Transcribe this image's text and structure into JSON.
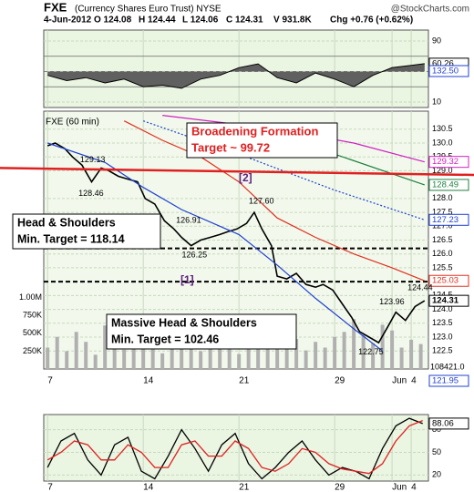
{
  "header": {
    "title": "FXE",
    "subtitle": "(Currency Shares Euro Trust) NYSE",
    "source": "@StockCharts.com",
    "quote": [
      "4-Jun-2012",
      "O 124.08",
      "H 124.44",
      "L 124.06",
      "C 124.31",
      "V 931.8K",
      "Chg +0.76 (+0.62%)"
    ]
  },
  "chart_data": [
    {
      "type": "line",
      "xlim": [
        -0.2,
        19.9
      ],
      "ylim": [
        2.8,
        104.3
      ],
      "yticks": [
        10,
        90
      ],
      "levels": [
        30,
        50,
        70
      ],
      "fill_level": 50,
      "grid": true,
      "extra_label": "132.50",
      "x": [
        0,
        1,
        2,
        3,
        4,
        5,
        6,
        7,
        8,
        9,
        10,
        11,
        12,
        13,
        14,
        15,
        16,
        17,
        18,
        19,
        19.7
      ],
      "series": [
        {
          "color": "#000000",
          "fill": "#606060",
          "tag": true,
          "values": [
            45,
            38,
            42,
            35,
            40,
            30,
            32,
            28,
            40,
            45,
            55,
            60,
            42,
            35,
            48,
            40,
            30,
            45,
            55,
            58,
            60.26
          ]
        }
      ]
    },
    {
      "type": "line",
      "label": "FXE (60 min)",
      "xlim": [
        -0.2,
        19.9
      ],
      "ylim": [
        121.85,
        131.15
      ],
      "yticks": [
        {
          "value": 130.5,
          "label": "130.5"
        },
        {
          "value": 130,
          "label": "130.0"
        },
        129.5,
        {
          "value": 129,
          "label": "129.0"
        },
        {
          "value": 128,
          "label": "128.0"
        },
        127.5,
        {
          "value": 127,
          "label": "127.0"
        },
        126.5,
        {
          "value": 126,
          "label": "126.0"
        },
        125.5,
        124.5,
        {
          "value": 124,
          "label": "124.0"
        },
        123.5,
        {
          "value": 123,
          "label": "123.0"
        },
        122.5
      ],
      "xticks": [
        {
          "value": 0,
          "label": "7"
        },
        {
          "value": 5,
          "label": "14"
        },
        {
          "value": 10,
          "label": "21"
        },
        {
          "value": 15,
          "label": "29"
        },
        {
          "value": 18,
          "label": "Jun"
        },
        {
          "value": 19,
          "label": "4"
        }
      ],
      "grid": true,
      "extra_label": "121.95",
      "hlines": [
        126.2,
        125.0
      ],
      "trendline": {
        "color": "#e02020",
        "x": [
          -2.5,
          22.3
        ],
        "values": [
          129.1,
          128.85
        ]
      },
      "series": [
        {
          "color": "#000000",
          "width": 1.6,
          "tag": true,
          "x": [
            0,
            0.4,
            0.9,
            1.3,
            1.8,
            2.3,
            2.8,
            3.2,
            3.7,
            4.2,
            4.7,
            5.1,
            5.6,
            6.1,
            6.6,
            7.0,
            7.5,
            8.0,
            8.5,
            9.0,
            9.4,
            9.9,
            10.4,
            10.8,
            11.2,
            11.7,
            12.0,
            12.5,
            13.0,
            13.5,
            14.0,
            14.4,
            14.9,
            15.4,
            15.9,
            16.3,
            16.8,
            17.3,
            17.8,
            18.2,
            18.7,
            19.2,
            19.7
          ],
          "values": [
            129.9,
            130.0,
            129.8,
            129.5,
            129.2,
            128.6,
            129.1,
            129.0,
            128.8,
            128.7,
            128.6,
            128.0,
            127.8,
            127.2,
            126.9,
            126.6,
            126.3,
            126.5,
            126.6,
            126.7,
            126.8,
            126.9,
            127.1,
            127.5,
            126.9,
            126.3,
            125.2,
            125.1,
            125.3,
            124.9,
            124.8,
            124.9,
            124.7,
            124.2,
            123.7,
            123.2,
            123.0,
            122.8,
            123.4,
            123.9,
            123.6,
            124.1,
            124.31
          ]
        },
        {
          "color": "#e03020",
          "width": 1.2,
          "tag": true,
          "x": [
            4,
            6,
            8,
            10,
            12,
            14,
            16,
            18,
            19.7
          ],
          "values": [
            130.8,
            130.1,
            129.5,
            128.6,
            127.3,
            126.6,
            126.0,
            125.5,
            125.03
          ]
        },
        {
          "color": "#2040d0",
          "width": 1.2,
          "x": [
            0,
            3,
            5,
            7,
            9,
            10,
            12,
            14,
            16,
            17.5
          ],
          "values": [
            130.0,
            129.3,
            128.4,
            127.6,
            127.0,
            126.7,
            125.6,
            124.4,
            123.3,
            122.5
          ]
        },
        {
          "color": "#2040d0",
          "width": 1.2,
          "dash": true,
          "tag": true,
          "x": [
            5,
            10,
            15,
            19.7
          ],
          "values": [
            130.8,
            129.6,
            128.3,
            127.23
          ]
        },
        {
          "color": "#208040",
          "width": 1.2,
          "tag": true,
          "x": [
            11,
            15,
            19.7
          ],
          "values": [
            130.6,
            129.6,
            128.49
          ]
        },
        {
          "color": "#d020c0",
          "width": 1.2,
          "tag": true,
          "x": [
            6,
            12,
            16,
            19.7
          ],
          "values": [
            131.0,
            130.5,
            130.0,
            129.32
          ]
        }
      ],
      "volume": {
        "color": "#b0b0b0",
        "ylim": [
          0,
          1200000
        ],
        "yticks": [
          {
            "value": 1000000,
            "label": "1.00M"
          },
          {
            "value": 750000,
            "label": "750K"
          },
          {
            "value": 500000,
            "label": "500K"
          },
          {
            "value": 250000,
            "label": "250K"
          }
        ],
        "extra_label": "108421.0",
        "x": [
          0,
          0.5,
          1,
          1.5,
          2,
          2.5,
          3,
          3.5,
          4,
          4.5,
          5,
          5.5,
          6,
          6.5,
          7,
          7.5,
          8,
          8.5,
          9,
          9.5,
          10,
          10.5,
          11,
          11.5,
          12,
          12.5,
          13,
          13.5,
          14,
          14.5,
          15,
          15.5,
          16,
          16.5,
          17,
          17.5,
          18,
          18.5,
          19,
          19.5
        ],
        "values": [
          300000,
          450000,
          250000,
          520000,
          380000,
          200000,
          610000,
          330000,
          270000,
          420000,
          500000,
          350000,
          220000,
          380000,
          460000,
          300000,
          250000,
          480000,
          550000,
          320000,
          210000,
          390000,
          470000,
          280000,
          340000,
          600000,
          420000,
          260000,
          380000,
          300000,
          450000,
          520000,
          700000,
          480000,
          360000,
          620000,
          540000,
          300000,
          410000,
          350000
        ]
      },
      "notes": [
        {
          "x": 1.7,
          "value": 129.13
        },
        {
          "x": 1.9,
          "value": 128.46
        },
        {
          "x": 7.0,
          "value": 126.91
        },
        {
          "x": 7.4,
          "value": 126.25
        },
        {
          "x": 10.8,
          "value": 127.6,
          "label": "127.60"
        },
        {
          "x": 18.0,
          "value": 123.96
        },
        {
          "x": 19.0,
          "value": 124.44
        },
        {
          "x": 17.0,
          "value": 122.75
        }
      ],
      "annotations": [
        {
          "lines": [
            "Broadening Formation",
            "Target ~ 99.72"
          ],
          "color": "#e02020"
        },
        {
          "lines": [
            "Head & Shoulders",
            "Min. Target = 118.14"
          ],
          "color": "#000000"
        },
        {
          "lines": [
            "Massive Head & Shoulders",
            "Min. Target = 102.46"
          ],
          "color": "#000000"
        },
        {
          "lines": [
            "[2]"
          ],
          "color": "#602080"
        },
        {
          "lines": [
            "[1]"
          ],
          "color": "#602080"
        }
      ]
    },
    {
      "type": "line",
      "xlim": [
        -0.2,
        19.9
      ],
      "ylim": [
        12,
        100
      ],
      "yticks": [
        20,
        50,
        80
      ],
      "xticks": [
        {
          "value": 0,
          "label": "7"
        },
        {
          "value": 5,
          "label": "14"
        },
        {
          "value": 10,
          "label": "21"
        },
        {
          "value": 15,
          "label": "29"
        },
        {
          "value": 18,
          "label": "Jun"
        },
        {
          "value": 19,
          "label": "4"
        }
      ],
      "grid": true,
      "x": [
        0,
        0.7,
        1.4,
        2.1,
        2.8,
        3.5,
        4.2,
        4.9,
        5.6,
        6.3,
        7,
        7.7,
        8.4,
        9.1,
        9.8,
        10.5,
        11.2,
        11.9,
        12.6,
        13.3,
        14,
        14.7,
        15.4,
        16.1,
        16.8,
        17.5,
        18.2,
        18.9,
        19.6
      ],
      "series": [
        {
          "color": "#000000",
          "width": 1.3,
          "tag": true,
          "values": [
            30,
            65,
            75,
            40,
            20,
            60,
            70,
            25,
            15,
            45,
            80,
            55,
            25,
            60,
            75,
            35,
            15,
            30,
            50,
            65,
            40,
            20,
            30,
            25,
            15,
            55,
            85,
            95,
            88.06
          ]
        },
        {
          "color": "#e02020",
          "width": 1.3,
          "values": [
            40,
            50,
            65,
            60,
            40,
            40,
            60,
            50,
            30,
            30,
            60,
            65,
            45,
            45,
            65,
            55,
            30,
            25,
            35,
            55,
            50,
            35,
            28,
            25,
            22,
            35,
            65,
            85,
            92
          ]
        }
      ]
    }
  ]
}
